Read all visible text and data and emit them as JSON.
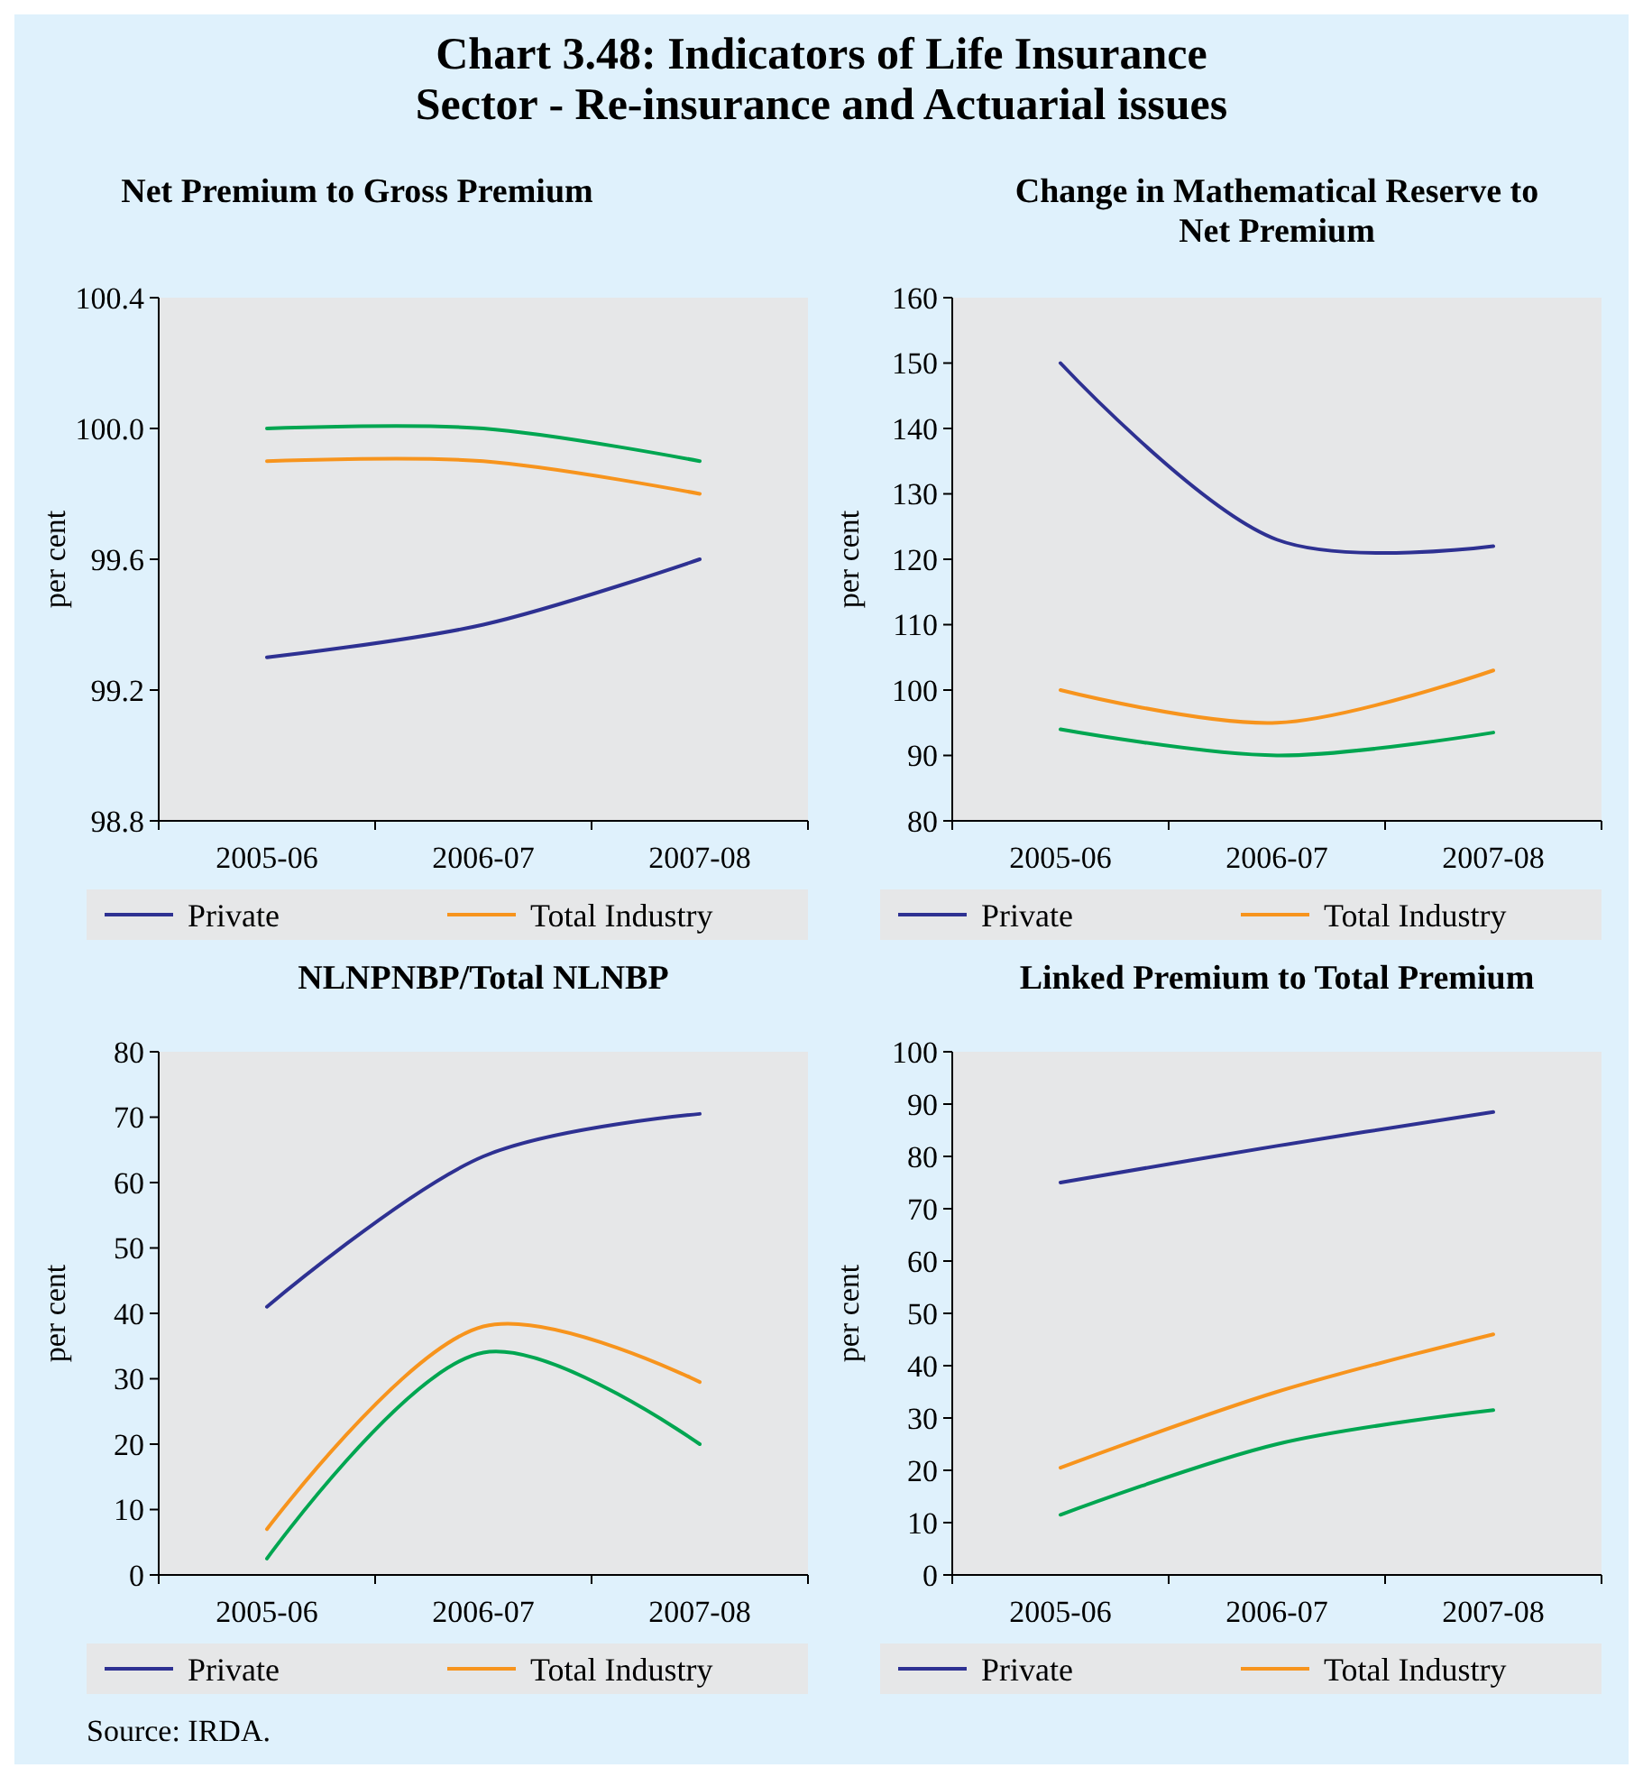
{
  "chart_data": [
    {
      "type": "line",
      "title": "Net Premium to Gross Premium",
      "ylabel": "per cent",
      "categories": [
        "2005-06",
        "2006-07",
        "2007-08"
      ],
      "ylim": [
        98.8,
        100.4
      ],
      "yticks": [
        98.8,
        99.2,
        99.6,
        {
          "value": 100,
          "label": "100.0"
        },
        100.4
      ],
      "legend": "bottom",
      "grid": false,
      "annotations": [
        "Chart 3.48: Indicators of Life Insurance Sector - Re-insurance and Actuarial issues"
      ],
      "series": [
        {
          "name": "Private",
          "color": "#2e3192",
          "values": [
            99.3,
            99.4,
            99.6
          ]
        },
        {
          "color": "#00a651",
          "values": [
            100.0,
            100.0,
            99.9
          ]
        },
        {
          "name": "Total Industry",
          "color": "#f7941d",
          "values": [
            99.9,
            99.9,
            99.8
          ]
        }
      ]
    },
    {
      "type": "line",
      "title": "Change in Mathematical Reserve to Net Premium",
      "ylabel": "per cent",
      "categories": [
        "2005-06",
        "2006-07",
        "2007-08"
      ],
      "ylim": [
        80,
        160
      ],
      "yticks": [
        80,
        90,
        100,
        110,
        120,
        130,
        140,
        150,
        160
      ],
      "legend": "bottom",
      "grid": false,
      "series": [
        {
          "name": "Private",
          "color": "#2e3192",
          "values": [
            150,
            123,
            122
          ]
        },
        {
          "color": "#00a651",
          "values": [
            94,
            90,
            93.5
          ]
        },
        {
          "name": "Total Industry",
          "color": "#f7941d",
          "values": [
            100,
            95,
            103
          ]
        }
      ]
    },
    {
      "type": "line",
      "title": "NLNPNBP/Total NLNBP",
      "ylabel": "per cent",
      "categories": [
        "2005-06",
        "2006-07",
        "2007-08"
      ],
      "ylim": [
        0,
        80
      ],
      "yticks": [
        0,
        10,
        20,
        30,
        40,
        50,
        60,
        70,
        80
      ],
      "legend": "bottom",
      "grid": false,
      "annotations": [
        "Source: IRDA."
      ],
      "series": [
        {
          "name": "Private",
          "color": "#2e3192",
          "values": [
            41,
            64,
            70.5
          ]
        },
        {
          "color": "#00a651",
          "values": [
            2.5,
            34,
            20
          ]
        },
        {
          "name": "Total Industry",
          "color": "#f7941d",
          "values": [
            7,
            38,
            29.5
          ]
        }
      ]
    },
    {
      "type": "line",
      "title": "Linked Premium to Total Premium",
      "ylabel": "per cent",
      "categories": [
        "2005-06",
        "2006-07",
        "2007-08"
      ],
      "ylim": [
        0,
        100
      ],
      "yticks": [
        0,
        10,
        20,
        30,
        40,
        50,
        60,
        70,
        80,
        90,
        100
      ],
      "legend": "bottom",
      "grid": false,
      "series": [
        {
          "name": "Private",
          "color": "#2e3192",
          "values": [
            75,
            82,
            88.5
          ]
        },
        {
          "color": "#00a651",
          "values": [
            11.5,
            25,
            31.5
          ]
        },
        {
          "name": "Total Industry",
          "color": "#f7941d",
          "values": [
            20.5,
            35,
            46
          ]
        }
      ]
    }
  ]
}
